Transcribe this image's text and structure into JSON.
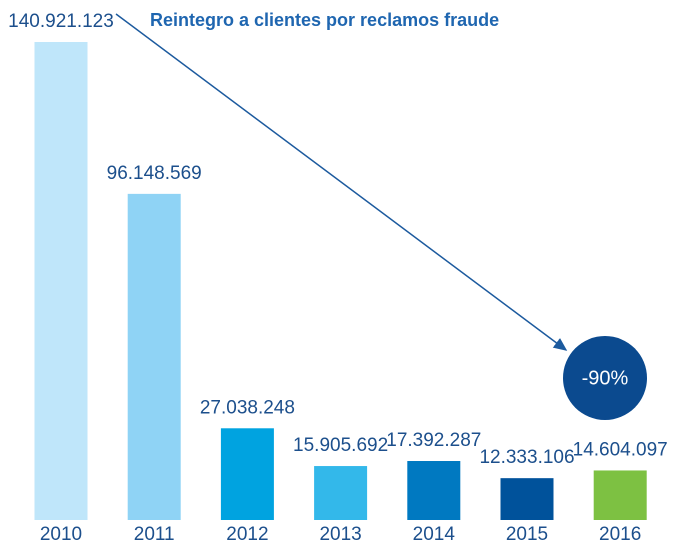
{
  "chart_data": {
    "type": "bar",
    "title": "Reintegro a clientes por reclamos fraude",
    "categories": [
      "2010",
      "2011",
      "2012",
      "2013",
      "2014",
      "2015",
      "2016"
    ],
    "values": [
      140921123,
      96148569,
      27038248,
      15905692,
      17392287,
      12333106,
      14604097
    ],
    "value_labels": [
      "140.921.123",
      "96.148.569",
      "27.038.248",
      "15.905.692",
      "17.392.287",
      "12.333.106",
      "14.604.097"
    ],
    "colors": [
      "#bfe6fa",
      "#8fd3f5",
      "#00a3e0",
      "#33b8ea",
      "#0079c1",
      "#00529b",
      "#7dc142"
    ],
    "annotation": "-90%"
  }
}
